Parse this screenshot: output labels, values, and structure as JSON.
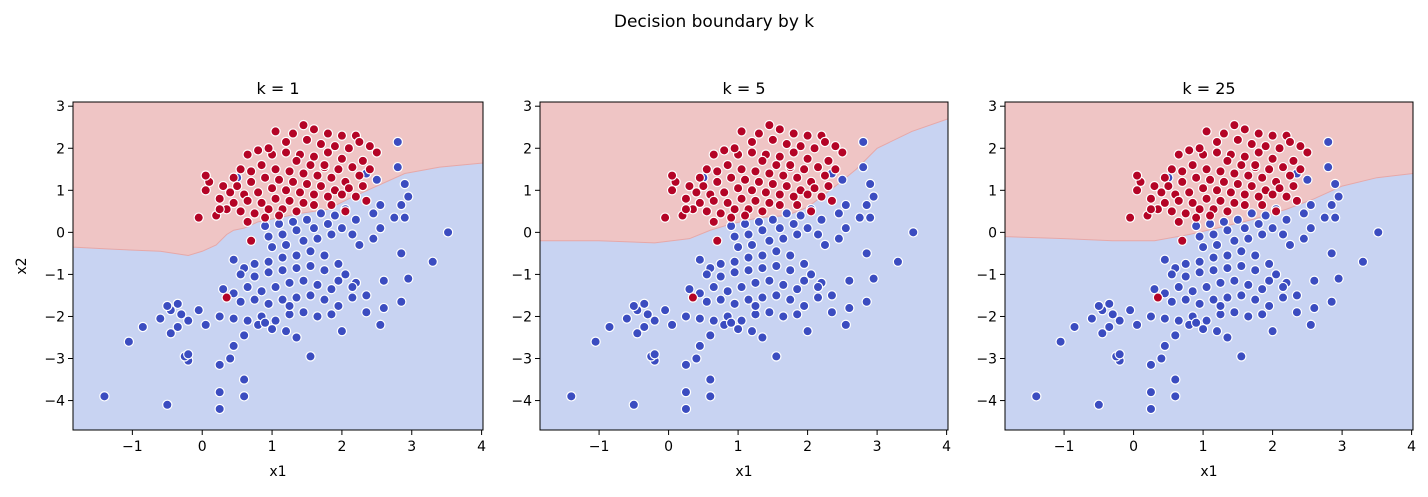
{
  "figure": {
    "title": "Decision boundary by k"
  },
  "colors": {
    "class0_region": "#c8d3f2",
    "class1_region": "#efc5c5",
    "class1_boundary": "#e6a8a8",
    "class0_point": "#3b4cc0",
    "class1_point": "#b40426",
    "point_edge": "#ffffff"
  },
  "chart_data": [
    {
      "type": "scatter",
      "title": "k = 1",
      "xlabel": "x1",
      "ylabel": "x2",
      "xlim": [
        -1.85,
        4.02
      ],
      "ylim": [
        -4.7,
        3.1
      ],
      "xticks": [
        -1,
        0,
        1,
        2,
        3,
        4
      ],
      "yticks": [
        -4,
        -3,
        -2,
        -1,
        0,
        1,
        2,
        3
      ],
      "boundary": [
        [
          -1.85,
          -0.35
        ],
        [
          -1.3,
          -0.4
        ],
        [
          -0.6,
          -0.45
        ],
        [
          -0.2,
          -0.55
        ],
        [
          0.0,
          -0.45
        ],
        [
          0.2,
          -0.3
        ],
        [
          0.35,
          -0.05
        ],
        [
          0.45,
          0.05
        ],
        [
          0.6,
          0.1
        ],
        [
          0.8,
          0.25
        ],
        [
          1.1,
          0.35
        ],
        [
          1.4,
          0.45
        ],
        [
          1.8,
          0.55
        ],
        [
          2.1,
          0.8
        ],
        [
          2.5,
          1.1
        ],
        [
          2.9,
          1.4
        ],
        [
          3.4,
          1.55
        ],
        [
          4.02,
          1.65
        ]
      ]
    },
    {
      "type": "scatter",
      "title": "k = 5",
      "xlabel": "x1",
      "ylabel": "",
      "xlim": [
        -1.85,
        4.02
      ],
      "ylim": [
        -4.7,
        3.1
      ],
      "xticks": [
        -1,
        0,
        1,
        2,
        3,
        4
      ],
      "yticks": [
        -4,
        -3,
        -2,
        -1,
        0,
        1,
        2,
        3
      ],
      "boundary": [
        [
          -1.85,
          -0.2
        ],
        [
          -1.0,
          -0.2
        ],
        [
          -0.2,
          -0.25
        ],
        [
          0.3,
          -0.15
        ],
        [
          0.6,
          0.05
        ],
        [
          0.9,
          0.2
        ],
        [
          1.3,
          0.35
        ],
        [
          1.7,
          0.4
        ],
        [
          2.0,
          0.6
        ],
        [
          2.4,
          1.1
        ],
        [
          2.7,
          1.5
        ],
        [
          3.0,
          2.0
        ],
        [
          3.5,
          2.4
        ],
        [
          4.02,
          2.7
        ]
      ]
    },
    {
      "type": "scatter",
      "title": "k = 25",
      "xlabel": "x1",
      "ylabel": "",
      "xlim": [
        -1.85,
        4.02
      ],
      "ylim": [
        -4.7,
        3.1
      ],
      "xticks": [
        -1,
        0,
        1,
        2,
        3,
        4
      ],
      "yticks": [
        -4,
        -3,
        -2,
        -1,
        0,
        1,
        2,
        3
      ],
      "boundary": [
        [
          -1.85,
          -0.1
        ],
        [
          -1.0,
          -0.15
        ],
        [
          -0.3,
          -0.2
        ],
        [
          0.3,
          -0.2
        ],
        [
          0.8,
          -0.05
        ],
        [
          1.2,
          0.1
        ],
        [
          1.7,
          0.3
        ],
        [
          2.2,
          0.55
        ],
        [
          2.6,
          0.8
        ],
        [
          3.0,
          1.1
        ],
        [
          3.5,
          1.3
        ],
        [
          4.02,
          1.4
        ]
      ]
    }
  ],
  "points": {
    "class1": [
      [
        1.05,
        2.4
      ],
      [
        1.45,
        2.55
      ],
      [
        1.6,
        2.45
      ],
      [
        1.8,
        2.35
      ],
      [
        2.0,
        2.3
      ],
      [
        2.2,
        2.3
      ],
      [
        2.25,
        2.15
      ],
      [
        1.3,
        2.35
      ],
      [
        1.2,
        2.15
      ],
      [
        1.5,
        2.2
      ],
      [
        1.7,
        2.1
      ],
      [
        1.9,
        2.05
      ],
      [
        2.1,
        2.0
      ],
      [
        2.4,
        2.05
      ],
      [
        2.5,
        1.9
      ],
      [
        2.0,
        1.75
      ],
      [
        1.8,
        1.9
      ],
      [
        1.6,
        1.8
      ],
      [
        1.4,
        1.85
      ],
      [
        1.2,
        1.9
      ],
      [
        1.0,
        1.85
      ],
      [
        0.8,
        1.95
      ],
      [
        0.65,
        1.85
      ],
      [
        0.95,
        2.0
      ],
      [
        1.35,
        1.7
      ],
      [
        1.55,
        1.6
      ],
      [
        1.75,
        1.55
      ],
      [
        1.95,
        1.5
      ],
      [
        2.15,
        1.55
      ],
      [
        2.3,
        1.7
      ],
      [
        2.4,
        1.5
      ],
      [
        2.25,
        1.35
      ],
      [
        2.05,
        1.2
      ],
      [
        1.85,
        1.3
      ],
      [
        1.65,
        1.35
      ],
      [
        1.45,
        1.4
      ],
      [
        1.25,
        1.45
      ],
      [
        1.05,
        1.5
      ],
      [
        0.85,
        1.6
      ],
      [
        0.7,
        1.45
      ],
      [
        0.55,
        1.5
      ],
      [
        0.45,
        1.3
      ],
      [
        0.5,
        1.1
      ],
      [
        0.7,
        1.2
      ],
      [
        0.9,
        1.3
      ],
      [
        1.1,
        1.25
      ],
      [
        1.3,
        1.2
      ],
      [
        1.5,
        1.15
      ],
      [
        1.7,
        1.1
      ],
      [
        1.9,
        1.0
      ],
      [
        2.1,
        1.05
      ],
      [
        2.3,
        1.1
      ],
      [
        2.2,
        0.85
      ],
      [
        2.0,
        0.9
      ],
      [
        1.8,
        0.85
      ],
      [
        1.6,
        0.9
      ],
      [
        1.4,
        0.95
      ],
      [
        1.2,
        1.0
      ],
      [
        1.0,
        1.05
      ],
      [
        0.8,
        0.95
      ],
      [
        0.6,
        0.9
      ],
      [
        0.4,
        0.95
      ],
      [
        0.3,
        1.1
      ],
      [
        0.1,
        1.2
      ],
      [
        0.05,
        1.35
      ],
      [
        0.05,
        1.0
      ],
      [
        0.25,
        0.8
      ],
      [
        0.45,
        0.7
      ],
      [
        0.65,
        0.75
      ],
      [
        0.85,
        0.7
      ],
      [
        1.05,
        0.8
      ],
      [
        1.25,
        0.75
      ],
      [
        1.45,
        0.7
      ],
      [
        1.6,
        0.65
      ],
      [
        0.35,
        0.55
      ],
      [
        0.55,
        0.5
      ],
      [
        0.75,
        0.45
      ],
      [
        0.95,
        0.55
      ],
      [
        1.15,
        0.55
      ],
      [
        1.35,
        0.5
      ],
      [
        -0.05,
        0.35
      ],
      [
        0.2,
        0.4
      ],
      [
        0.65,
        0.25
      ],
      [
        0.9,
        0.35
      ],
      [
        1.1,
        0.4
      ],
      [
        0.7,
        -0.2
      ],
      [
        0.35,
        -1.55
      ],
      [
        0.25,
        0.55
      ],
      [
        1.85,
        0.65
      ],
      [
        2.05,
        0.5
      ],
      [
        1.75,
        1.6
      ],
      [
        2.35,
        0.75
      ]
    ],
    "class0": [
      [
        2.8,
        2.15
      ],
      [
        2.35,
        1.4
      ],
      [
        2.5,
        1.25
      ],
      [
        2.8,
        1.55
      ],
      [
        2.9,
        1.15
      ],
      [
        0.5,
        1.3
      ],
      [
        2.95,
        0.85
      ],
      [
        2.85,
        0.65
      ],
      [
        2.75,
        0.35
      ],
      [
        2.9,
        0.35
      ],
      [
        2.55,
        0.65
      ],
      [
        2.45,
        0.45
      ],
      [
        2.2,
        0.3
      ],
      [
        2.05,
        0.55
      ],
      [
        1.9,
        0.4
      ],
      [
        1.7,
        0.45
      ],
      [
        1.5,
        0.3
      ],
      [
        1.3,
        0.25
      ],
      [
        1.1,
        0.2
      ],
      [
        0.9,
        0.15
      ],
      [
        1.6,
        0.1
      ],
      [
        1.8,
        0.2
      ],
      [
        2.0,
        0.1
      ],
      [
        2.15,
        -0.05
      ],
      [
        1.35,
        0.05
      ],
      [
        1.15,
        -0.05
      ],
      [
        0.95,
        -0.1
      ],
      [
        1.0,
        -0.35
      ],
      [
        1.2,
        -0.3
      ],
      [
        1.45,
        -0.2
      ],
      [
        1.65,
        -0.15
      ],
      [
        1.85,
        -0.05
      ],
      [
        2.25,
        -0.3
      ],
      [
        2.45,
        -0.15
      ],
      [
        2.55,
        0.1
      ],
      [
        2.85,
        -0.5
      ],
      [
        3.3,
        -0.7
      ],
      [
        3.52,
        0.0
      ],
      [
        2.95,
        -1.1
      ],
      [
        2.6,
        -1.15
      ],
      [
        2.85,
        -1.65
      ],
      [
        2.6,
        -1.8
      ],
      [
        2.55,
        -2.2
      ],
      [
        2.35,
        -1.5
      ],
      [
        2.2,
        -1.2
      ],
      [
        2.05,
        -1.0
      ],
      [
        1.95,
        -0.75
      ],
      [
        1.75,
        -0.55
      ],
      [
        1.55,
        -0.45
      ],
      [
        1.35,
        -0.55
      ],
      [
        1.15,
        -0.6
      ],
      [
        0.95,
        -0.7
      ],
      [
        0.75,
        -0.75
      ],
      [
        0.6,
        -0.85
      ],
      [
        0.45,
        -0.65
      ],
      [
        0.55,
        -1.0
      ],
      [
        0.75,
        -1.05
      ],
      [
        0.95,
        -0.95
      ],
      [
        1.15,
        -0.9
      ],
      [
        1.35,
        -0.85
      ],
      [
        1.55,
        -0.8
      ],
      [
        1.75,
        -0.9
      ],
      [
        1.95,
        -1.15
      ],
      [
        2.15,
        -1.3
      ],
      [
        1.85,
        -1.35
      ],
      [
        1.65,
        -1.25
      ],
      [
        1.45,
        -1.15
      ],
      [
        1.25,
        -1.2
      ],
      [
        1.05,
        -1.3
      ],
      [
        0.85,
        -1.4
      ],
      [
        0.65,
        -1.3
      ],
      [
        0.45,
        -1.45
      ],
      [
        0.3,
        -1.35
      ],
      [
        0.55,
        -1.65
      ],
      [
        0.75,
        -1.6
      ],
      [
        0.95,
        -1.7
      ],
      [
        1.15,
        -1.6
      ],
      [
        1.35,
        -1.55
      ],
      [
        1.55,
        -1.5
      ],
      [
        1.75,
        -1.6
      ],
      [
        1.95,
        -1.75
      ],
      [
        2.15,
        -1.55
      ],
      [
        2.35,
        -1.9
      ],
      [
        1.85,
        -1.95
      ],
      [
        1.65,
        -2.0
      ],
      [
        1.45,
        -1.9
      ],
      [
        1.25,
        -1.95
      ],
      [
        1.05,
        -2.1
      ],
      [
        0.85,
        -2.0
      ],
      [
        0.65,
        -2.1
      ],
      [
        0.45,
        -2.05
      ],
      [
        0.25,
        -2.0
      ],
      [
        1.0,
        -2.3
      ],
      [
        1.2,
        -2.35
      ],
      [
        1.35,
        -2.5
      ],
      [
        0.8,
        -2.2
      ],
      [
        0.6,
        -2.45
      ],
      [
        0.45,
        -2.7
      ],
      [
        0.9,
        -2.15
      ],
      [
        1.55,
        -2.95
      ],
      [
        2.0,
        -2.35
      ],
      [
        0.4,
        -3.0
      ],
      [
        0.25,
        -3.15
      ],
      [
        0.6,
        -3.5
      ],
      [
        0.25,
        -3.8
      ],
      [
        0.6,
        -3.9
      ],
      [
        0.25,
        -4.2
      ],
      [
        -0.5,
        -4.1
      ],
      [
        -1.4,
        -3.9
      ],
      [
        -0.2,
        -3.05
      ],
      [
        -0.25,
        -2.95
      ],
      [
        -0.2,
        -2.9
      ],
      [
        -1.05,
        -2.6
      ],
      [
        -0.85,
        -2.25
      ],
      [
        -0.45,
        -2.4
      ],
      [
        -0.35,
        -2.25
      ],
      [
        -0.6,
        -2.05
      ],
      [
        -0.45,
        -1.85
      ],
      [
        -0.3,
        -1.95
      ],
      [
        -0.05,
        -1.85
      ],
      [
        0.05,
        -2.2
      ],
      [
        -0.2,
        -2.1
      ],
      [
        -0.5,
        -1.75
      ],
      [
        -0.35,
        -1.7
      ],
      [
        1.25,
        -1.75
      ]
    ]
  }
}
